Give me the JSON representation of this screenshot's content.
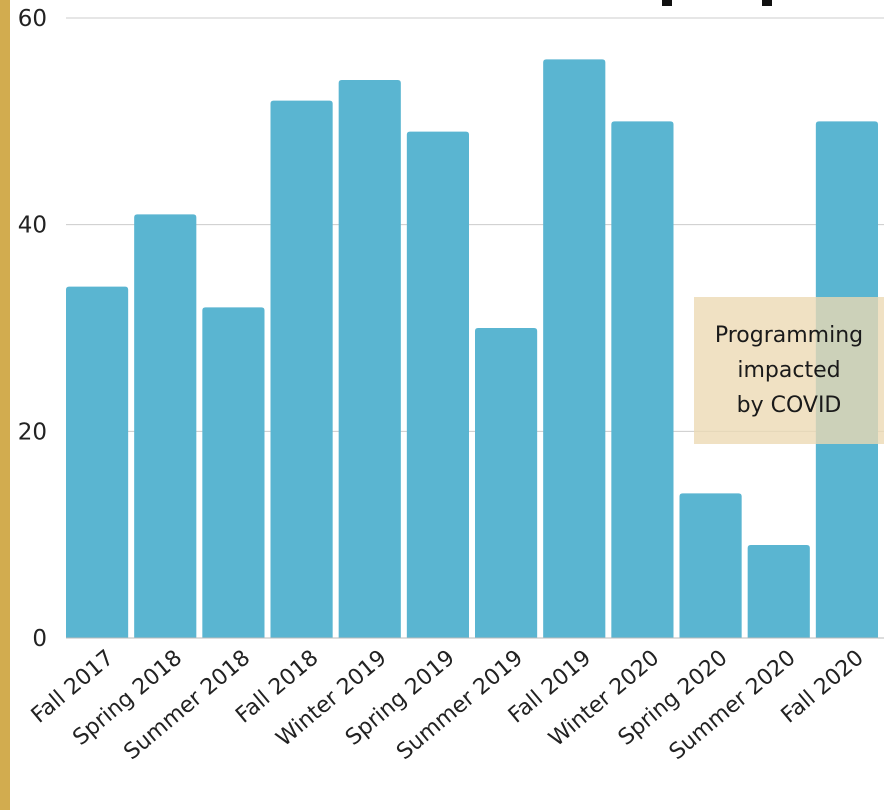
{
  "accent_color": "#d2ac4f",
  "bar_color": "#5ab5d1",
  "grid_color": "#cccccc",
  "annotation_bg": "#ecd8b2",
  "annotation": {
    "text": "Programming\nimpacted\nby COVID"
  },
  "chart_data": {
    "type": "bar",
    "title": "",
    "xlabel": "",
    "ylabel": "",
    "categories": [
      "Fall 2017",
      "Spring 2018",
      "Summer 2018",
      "Fall 2018",
      "Winter 2019",
      "Spring 2019",
      "Summer 2019",
      "Fall 2019",
      "Winter 2020",
      "Spring 2020",
      "Summer 2020",
      "Fall 2020"
    ],
    "values": [
      34,
      41,
      32,
      52,
      54,
      49,
      30,
      56,
      50,
      14,
      9,
      50
    ],
    "ylim": [
      0,
      60
    ],
    "yticks": [
      "0",
      "20",
      "40",
      "60"
    ],
    "grid": true,
    "legend": "none"
  }
}
